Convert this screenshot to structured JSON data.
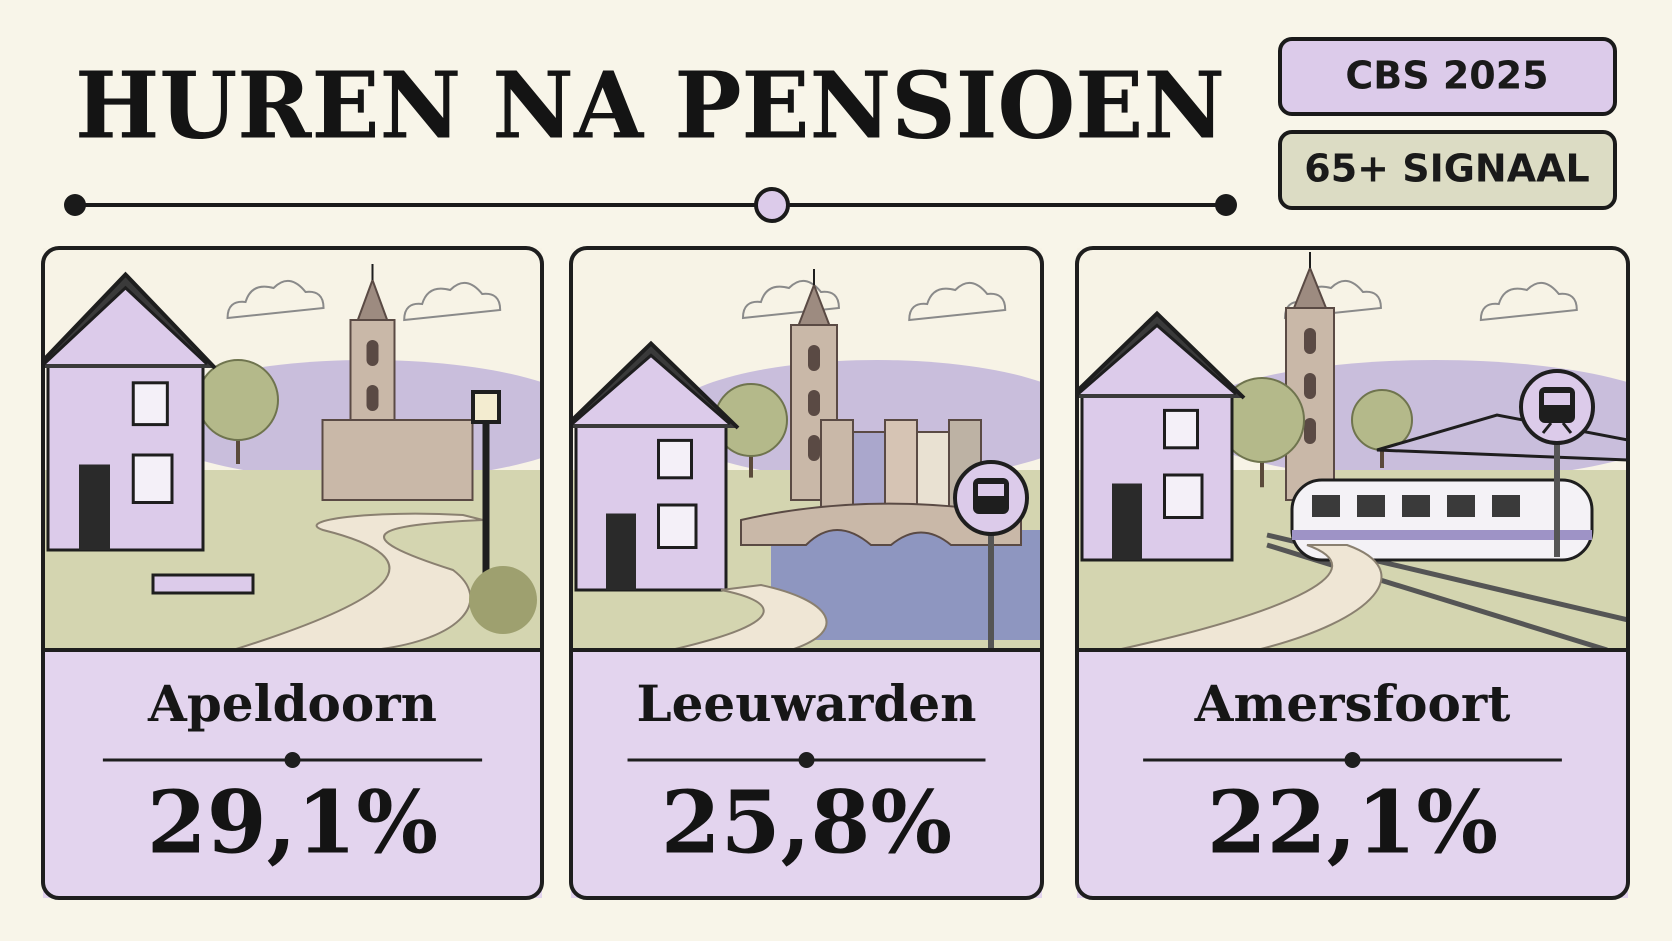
{
  "header": {
    "title": "HUREN NA PENSIOEN"
  },
  "badges": [
    "CBS 2025",
    "65+ SIGNAAL"
  ],
  "cards": [
    {
      "city": "Apeldoorn",
      "value": "29,1%"
    },
    {
      "city": "Leeuwarden",
      "value": "25,8%"
    },
    {
      "city": "Amersfoort",
      "value": "22,1%"
    }
  ]
}
